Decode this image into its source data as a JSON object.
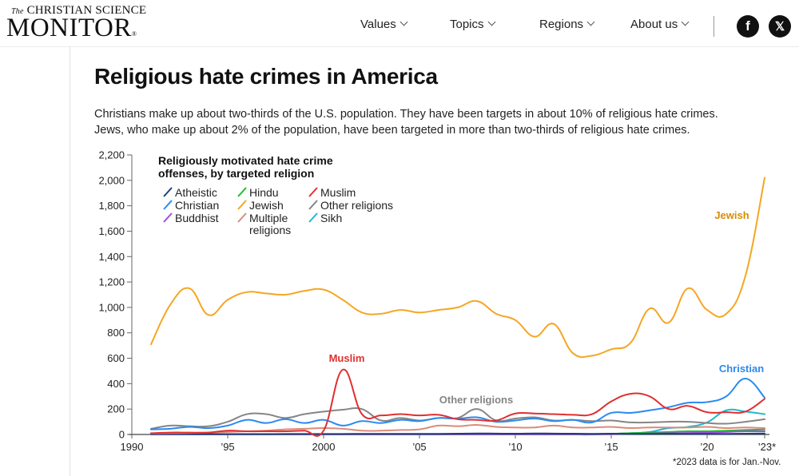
{
  "header": {
    "logo_line1_prefix": "The",
    "logo_line1": "CHRISTIAN SCIENCE",
    "logo_line2": "MONITOR",
    "logo_mark": "®",
    "nav": [
      {
        "label": "Values"
      },
      {
        "label": "Topics"
      },
      {
        "label": "Regions"
      },
      {
        "label": "About us"
      }
    ],
    "social": [
      {
        "name": "facebook-icon",
        "glyph": "f"
      },
      {
        "name": "x-icon",
        "glyph": "𝕏"
      }
    ]
  },
  "article": {
    "title": "Religious hate crimes in America",
    "subtitle_line1": "Christians make up about two-thirds of the U.S. population. They have been targets in about 10% of religious hate crimes.",
    "subtitle_line2": "Jews, who make up about 2% of the population, have been targeted in more than two-thirds of religious hate crimes.",
    "footnote": "*2023 data is for Jan.-Nov."
  },
  "chart_data": {
    "type": "line",
    "title": "Religiously motivated hate crime offenses, by targeted religion",
    "title_lines": [
      "Religiously motivated hate crime",
      "offenses, by targeted religion"
    ],
    "xlabel": "",
    "ylabel": "",
    "xlim": [
      1990,
      2023
    ],
    "ylim": [
      0,
      2200
    ],
    "yticks": [
      0,
      200,
      400,
      600,
      800,
      1000,
      1200,
      1400,
      1600,
      1800,
      2000,
      2200
    ],
    "ytick_labels": [
      "0",
      "200",
      "400",
      "600",
      "800",
      "1,000",
      "1,200",
      "1,400",
      "1,600",
      "1,800",
      "2,000",
      "2,200"
    ],
    "xticks": [
      1990,
      1995,
      2000,
      2005,
      2010,
      2015,
      2020,
      2023
    ],
    "xtick_labels": [
      "1990",
      "’95",
      "2000",
      "’05",
      "’10",
      "’15",
      "’20",
      "’23*"
    ],
    "grid": false,
    "legend_placement": "top-left",
    "x": [
      1991,
      1992,
      1993,
      1994,
      1995,
      1996,
      1997,
      1998,
      1999,
      2000,
      2001,
      2002,
      2003,
      2004,
      2005,
      2006,
      2007,
      2008,
      2009,
      2010,
      2011,
      2012,
      2013,
      2014,
      2015,
      2016,
      2017,
      2018,
      2019,
      2020,
      2021,
      2022,
      2023
    ],
    "series": [
      {
        "name": "Atheistic",
        "color": "#1f3f73",
        "values": [
          2,
          3,
          3,
          3,
          3,
          3,
          3,
          4,
          4,
          4,
          4,
          5,
          5,
          5,
          5,
          5,
          6,
          8,
          7,
          6,
          8,
          7,
          6,
          5,
          6,
          5,
          5,
          6,
          5,
          5,
          5,
          6,
          8
        ]
      },
      {
        "name": "Christian",
        "color": "#2b8af0",
        "values": [
          40,
          45,
          60,
          50,
          70,
          115,
          90,
          120,
          90,
          115,
          70,
          105,
          90,
          115,
          105,
          130,
          125,
          135,
          100,
          110,
          125,
          105,
          115,
          95,
          170,
          170,
          190,
          215,
          250,
          255,
          300,
          440,
          290
        ]
      },
      {
        "name": "Buddhist",
        "color": "#a04ce0",
        "values": [
          1,
          1,
          1,
          1,
          1,
          1,
          1,
          1,
          1,
          1,
          1,
          1,
          1,
          1,
          1,
          1,
          1,
          1,
          1,
          1,
          1,
          1,
          1,
          1,
          2,
          5,
          8,
          10,
          12,
          15,
          20,
          25,
          25
        ]
      },
      {
        "name": "Hindu",
        "color": "#19c02c",
        "values": [
          0,
          0,
          0,
          0,
          0,
          0,
          0,
          0,
          0,
          0,
          0,
          0,
          0,
          0,
          0,
          0,
          0,
          0,
          0,
          0,
          0,
          0,
          0,
          0,
          5,
          10,
          15,
          20,
          25,
          25,
          30,
          35,
          40
        ]
      },
      {
        "name": "Jewish",
        "color": "#f5a623",
        "values": [
          710,
          1020,
          1150,
          940,
          1060,
          1120,
          1110,
          1100,
          1130,
          1140,
          1060,
          960,
          950,
          980,
          960,
          980,
          1000,
          1050,
          950,
          900,
          770,
          870,
          640,
          620,
          670,
          720,
          990,
          880,
          1150,
          980,
          950,
          1250,
          2020
        ]
      },
      {
        "name": "Multiple religions",
        "color": "#d98c7a",
        "values": [
          8,
          10,
          12,
          15,
          20,
          25,
          30,
          40,
          45,
          50,
          45,
          30,
          30,
          35,
          40,
          70,
          65,
          75,
          60,
          55,
          55,
          70,
          55,
          55,
          60,
          50,
          55,
          55,
          55,
          60,
          50,
          55,
          50
        ]
      },
      {
        "name": "Muslim",
        "color": "#e03030",
        "values": [
          10,
          15,
          15,
          15,
          30,
          25,
          25,
          25,
          30,
          30,
          510,
          160,
          150,
          160,
          150,
          155,
          120,
          115,
          110,
          165,
          165,
          160,
          155,
          160,
          260,
          320,
          300,
          200,
          225,
          175,
          175,
          180,
          280
        ]
      },
      {
        "name": "Other religions",
        "color": "#858585",
        "values": [
          45,
          70,
          65,
          65,
          100,
          160,
          160,
          130,
          160,
          180,
          195,
          200,
          110,
          130,
          110,
          130,
          130,
          200,
          110,
          125,
          135,
          110,
          115,
          105,
          110,
          95,
          95,
          100,
          100,
          90,
          85,
          100,
          120
        ]
      },
      {
        "name": "Sikh",
        "color": "#1fb8d0",
        "values": [
          0,
          0,
          0,
          0,
          0,
          0,
          0,
          0,
          0,
          0,
          0,
          0,
          0,
          0,
          0,
          0,
          0,
          0,
          0,
          0,
          0,
          0,
          0,
          0,
          5,
          10,
          20,
          50,
          60,
          95,
          190,
          180,
          160
        ]
      }
    ],
    "annotations": [
      {
        "text": "Jewish",
        "series": "Jewish",
        "color": "#d98c00"
      },
      {
        "text": "Muslim",
        "series": "Muslim",
        "color": "#e03030"
      },
      {
        "text": "Other religions",
        "series": "Other religions",
        "color": "#858585"
      },
      {
        "text": "Christian",
        "series": "Christian",
        "color": "#2b8af0"
      }
    ]
  }
}
